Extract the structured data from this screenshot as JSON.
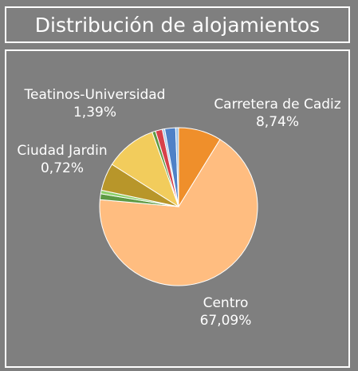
{
  "title": "Distribución de alojamientos",
  "colors": {
    "background": "#7f7f7f",
    "border": "#ffffff",
    "text": "#ffffff"
  },
  "chart_data": {
    "type": "pie",
    "title": "Distribución de alojamientos",
    "slices": [
      {
        "name": "Carretera de Cadiz",
        "value": 8.74,
        "percent_label": "8,74%",
        "color": "#ef8f2b",
        "labeled": true
      },
      {
        "name": "Centro",
        "value": 67.09,
        "percent_label": "67,09%",
        "color": "#ffbd80",
        "labeled": true
      },
      {
        "name": "",
        "value": 1.2,
        "percent_label": "",
        "color": "#5e9a44",
        "labeled": false
      },
      {
        "name": "Ciudad Jardin",
        "value": 0.72,
        "percent_label": "0,72%",
        "color": "#8ed06a",
        "labeled": true
      },
      {
        "name": "",
        "value": 5.6,
        "percent_label": "",
        "color": "#b8962a",
        "labeled": false
      },
      {
        "name": "",
        "value": 10.5,
        "percent_label": "",
        "color": "#f2cc5c",
        "labeled": false
      },
      {
        "name": "",
        "value": 0.7,
        "percent_label": "",
        "color": "#5e9a44",
        "labeled": false
      },
      {
        "name": "Teatinos-Universidad",
        "value": 1.39,
        "percent_label": "1,39%",
        "color": "#d7414a",
        "labeled": true
      },
      {
        "name": "",
        "value": 0.5,
        "percent_label": "",
        "color": "#a8c9e8",
        "labeled": false
      },
      {
        "name": "",
        "value": 2.2,
        "percent_label": "",
        "color": "#4f81c7",
        "labeled": false
      },
      {
        "name": "",
        "value": 0.6,
        "percent_label": "",
        "color": "#9fc5e8",
        "labeled": false
      }
    ]
  }
}
